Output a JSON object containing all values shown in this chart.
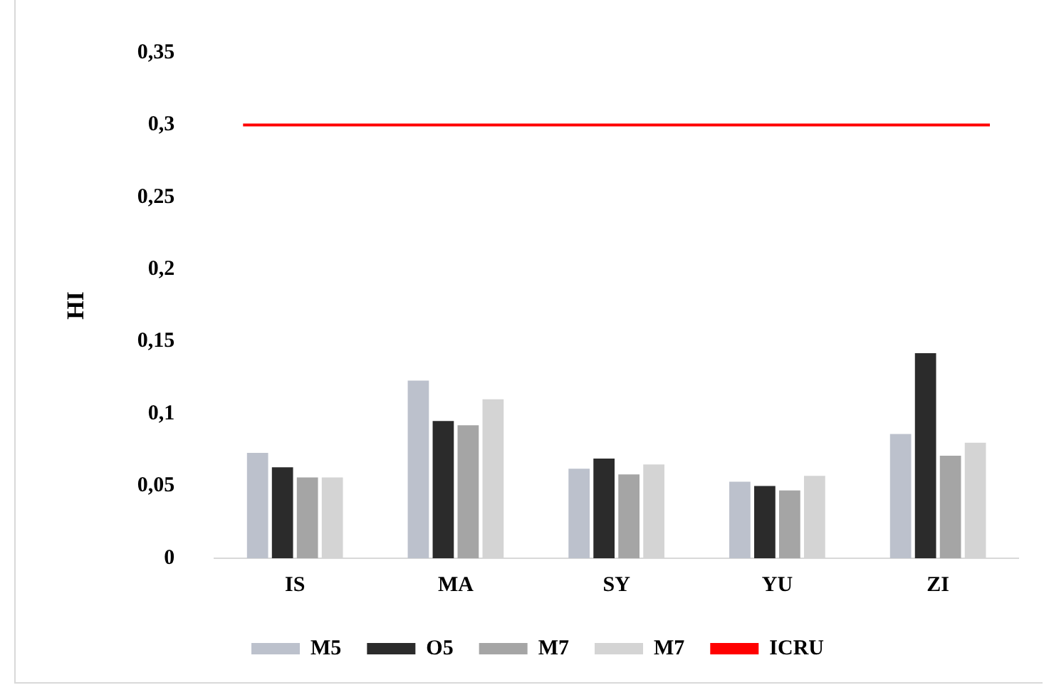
{
  "chart_data": {
    "type": "bar",
    "ylabel": "HI",
    "categories": [
      "IS",
      "MA",
      "SY",
      "YU",
      "ZI"
    ],
    "series": [
      {
        "name": "M5",
        "color": "#bcc1cc",
        "values": [
          0.073,
          0.123,
          0.062,
          0.053,
          0.086
        ]
      },
      {
        "name": "O5",
        "color": "#2b2b2b",
        "values": [
          0.063,
          0.095,
          0.069,
          0.05,
          0.142
        ]
      },
      {
        "name": "M7",
        "color": "#a5a5a5",
        "values": [
          0.056,
          0.092,
          0.058,
          0.047,
          0.071
        ]
      },
      {
        "name": "M7",
        "color": "#d4d4d4",
        "values": [
          0.056,
          0.11,
          0.065,
          0.057,
          0.08
        ]
      }
    ],
    "ylim": [
      0,
      0.35
    ],
    "yticks": [
      {
        "value": 0,
        "label": "0"
      },
      {
        "value": 0.05,
        "label": "0,05"
      },
      {
        "value": 0.1,
        "label": "0,1"
      },
      {
        "value": 0.15,
        "label": "0,15"
      },
      {
        "value": 0.2,
        "label": "0,2"
      },
      {
        "value": 0.25,
        "label": "0,25"
      },
      {
        "value": 0.3,
        "label": "0,3"
      },
      {
        "value": 0.35,
        "label": "0,35"
      }
    ],
    "ref_lines": [
      {
        "axis": "y",
        "value": 0.3,
        "label": "ICRU",
        "color": "#ff0000"
      }
    ],
    "grid": false,
    "legend": "bottom"
  }
}
